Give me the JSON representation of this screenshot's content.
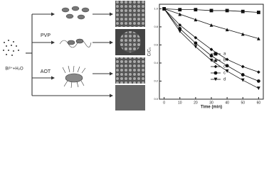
{
  "diagram": {
    "reactant_label": "Bi³⁺+H₂O",
    "additive_labels": [
      "PVP",
      "AOT"
    ]
  },
  "chart_data": {
    "type": "line",
    "x_label": "Time (min)",
    "y_label": "C/C₀",
    "x": [
      0,
      10,
      20,
      30,
      40,
      50,
      60
    ],
    "series": [
      {
        "name": "a",
        "color": "#111",
        "marker": "square",
        "values": [
          1.0,
          0.99,
          0.99,
          0.98,
          0.98,
          0.97,
          0.96
        ]
      },
      {
        "name": "b",
        "color": "#111",
        "marker": "triangle-up",
        "values": [
          1.0,
          0.94,
          0.88,
          0.82,
          0.77,
          0.72,
          0.67
        ]
      },
      {
        "name": "c",
        "color": "#111",
        "marker": "diamond",
        "values": [
          1.0,
          0.82,
          0.68,
          0.55,
          0.44,
          0.36,
          0.3
        ]
      },
      {
        "name": "c",
        "color": "#111",
        "marker": "circle",
        "values": [
          1.0,
          0.78,
          0.62,
          0.48,
          0.37,
          0.27,
          0.2
        ]
      },
      {
        "name": "d",
        "color": "#111",
        "marker": "triangle-down",
        "values": [
          1.0,
          0.75,
          0.58,
          0.43,
          0.31,
          0.21,
          0.12
        ]
      }
    ],
    "xlim": [
      -3,
      63
    ],
    "ylim": [
      0,
      1.05
    ],
    "xticks": [
      0,
      10,
      20,
      30,
      40,
      50,
      60
    ],
    "yticks": [
      {
        "value": 0,
        "label": "0.0"
      },
      {
        "value": 0.2,
        "label": "0.2"
      },
      {
        "value": 0.4,
        "label": "0.4"
      },
      {
        "value": 0.6,
        "label": "0.6"
      },
      {
        "value": 0.8,
        "label": "0.8"
      },
      {
        "value": 1,
        "label": "1.0"
      }
    ],
    "legend": "lower right"
  }
}
